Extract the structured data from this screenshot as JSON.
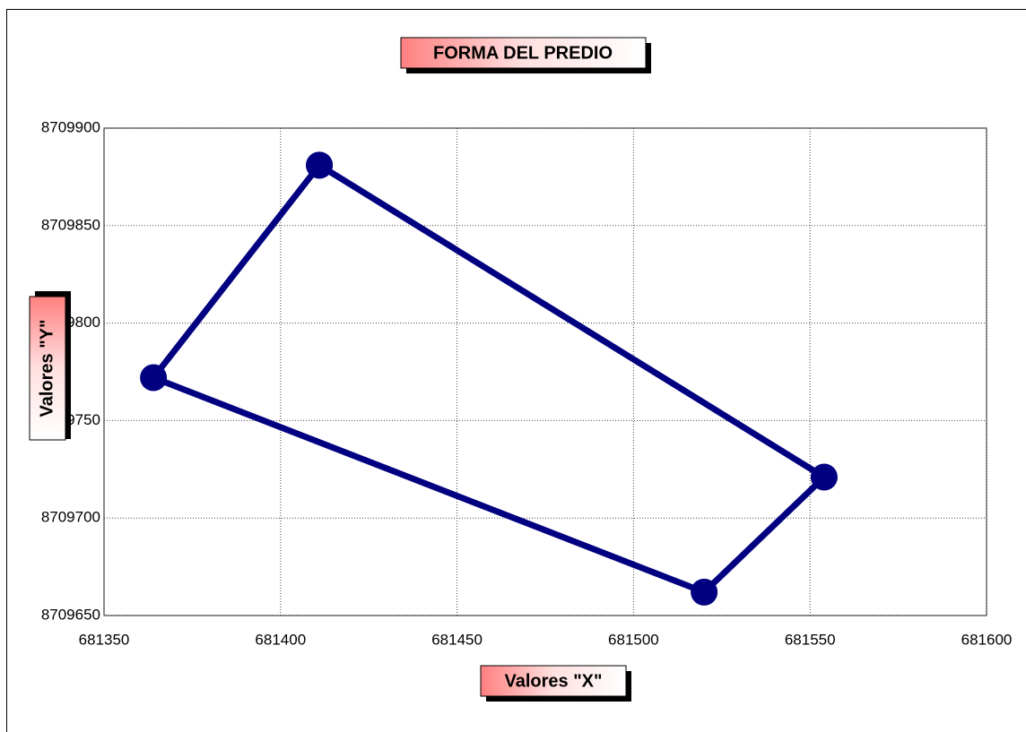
{
  "chart_data": {
    "type": "scatter",
    "title": "FORMA DEL PREDIO",
    "xlabel": "Valores \"X\"",
    "ylabel": "Valores \"Y\"",
    "x": [
      681411,
      681554,
      681520,
      681364,
      681411
    ],
    "values": [
      8709881,
      8709721,
      8709662,
      8709772,
      8709881
    ],
    "color": "#000080",
    "xlim": [
      681350,
      681600
    ],
    "xticks": [
      681350,
      681400,
      681450,
      681500,
      681550,
      681600
    ],
    "ylim": [
      8709650,
      8709900
    ],
    "yticks": [
      8709650,
      8709700,
      8709750,
      8709800,
      8709850,
      8709900
    ],
    "grid": true
  }
}
